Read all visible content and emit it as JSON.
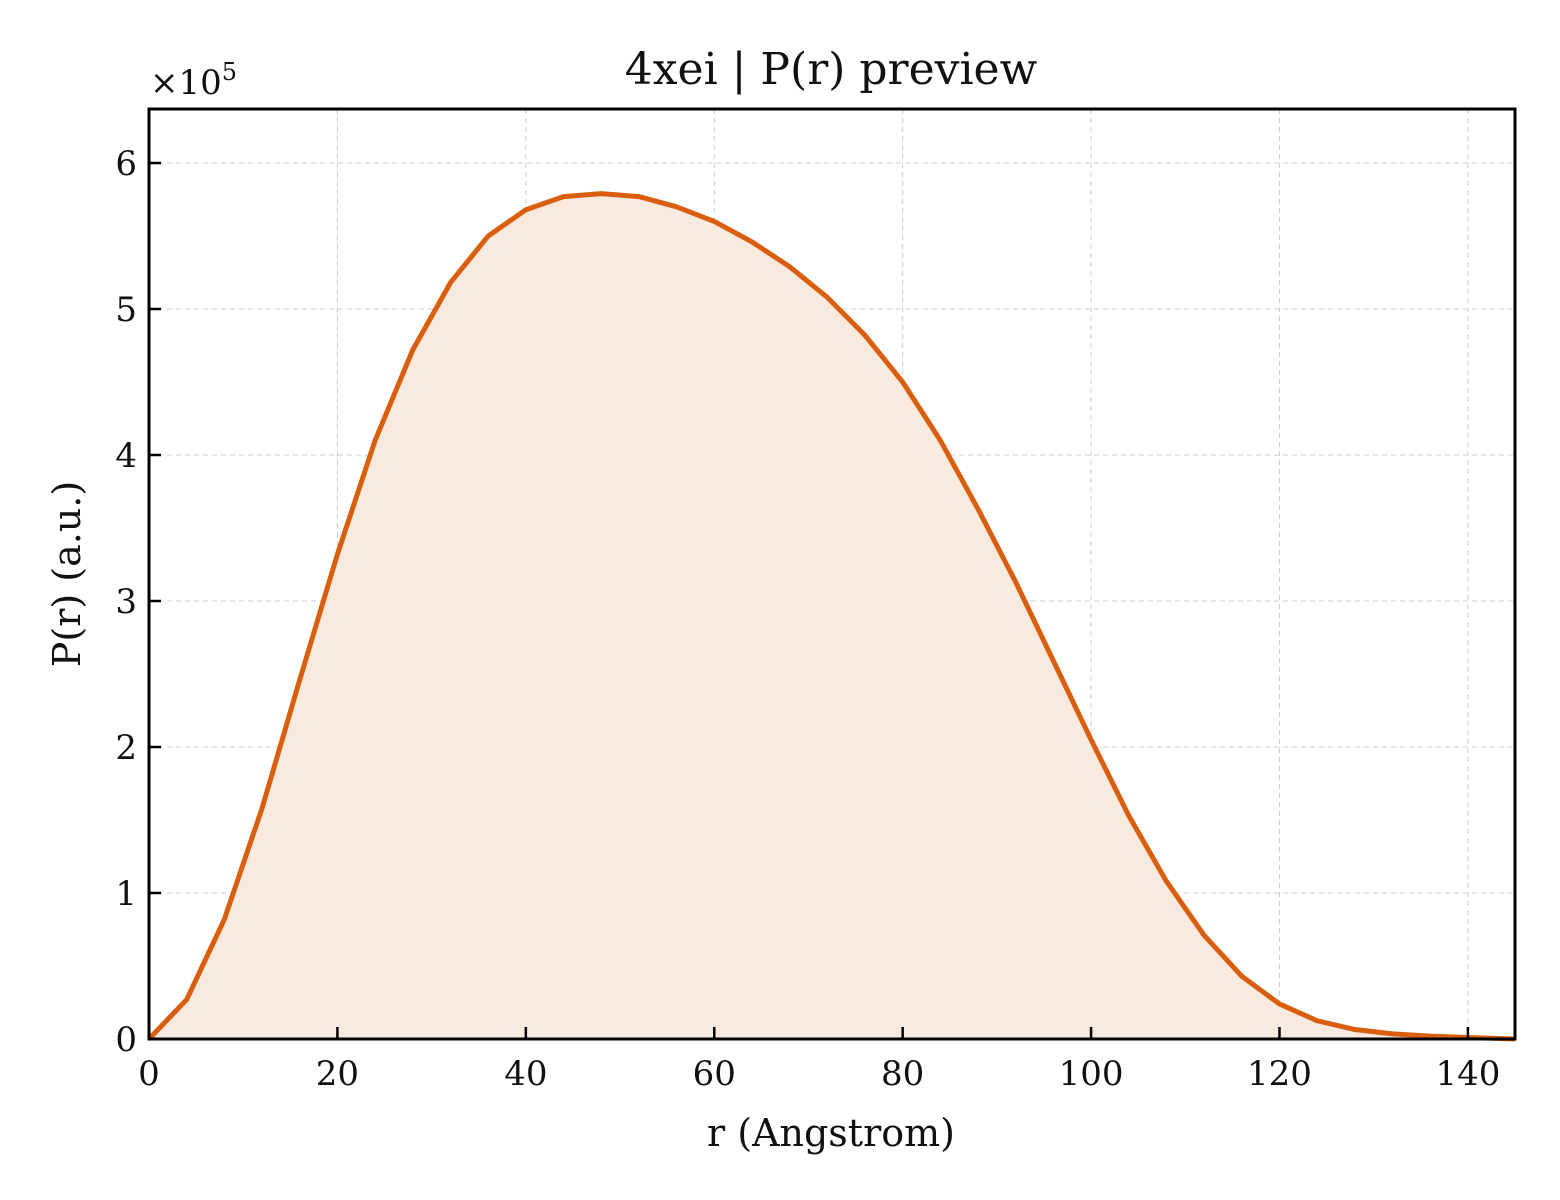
{
  "chart_data": {
    "type": "area",
    "title": "4xei | P(r) preview",
    "xlabel": "r (Angstrom)",
    "ylabel": "P(r) (a.u.)",
    "y_multiplier_base": "×10",
    "y_multiplier_exp": "5",
    "xlim": [
      0,
      145
    ],
    "ylim": [
      0,
      6.37
    ],
    "grid": true,
    "x_ticks": [
      0,
      20,
      40,
      60,
      80,
      100,
      120,
      140
    ],
    "y_ticks": [
      0,
      1,
      2,
      3,
      4,
      5,
      6
    ],
    "x_tick_labels": [
      "0",
      "20",
      "40",
      "60",
      "80",
      "100",
      "120",
      "140"
    ],
    "y_tick_labels": [
      "0",
      "1",
      "2",
      "3",
      "4",
      "5",
      "6"
    ],
    "series": [
      {
        "x": [
          0,
          4,
          8,
          12,
          16,
          20,
          24,
          28,
          32,
          36,
          40,
          44,
          48,
          52,
          56,
          60,
          64,
          68,
          72,
          76,
          80,
          84,
          88,
          92,
          96,
          100,
          104,
          108,
          112,
          116,
          120,
          124,
          128,
          132,
          136,
          140,
          145
        ],
        "values": [
          0.0,
          0.27,
          0.82,
          1.58,
          2.46,
          3.32,
          4.1,
          4.72,
          5.18,
          5.5,
          5.68,
          5.77,
          5.79,
          5.77,
          5.7,
          5.6,
          5.46,
          5.29,
          5.08,
          4.82,
          4.5,
          4.1,
          3.63,
          3.13,
          2.59,
          2.05,
          1.53,
          1.08,
          0.71,
          0.43,
          0.24,
          0.125,
          0.065,
          0.035,
          0.02,
          0.01,
          0.0
        ]
      }
    ],
    "colors": {
      "line": "#d95f0e",
      "fill": "#f9eadf",
      "grid": "#cccccc",
      "axis": "#000000"
    }
  }
}
